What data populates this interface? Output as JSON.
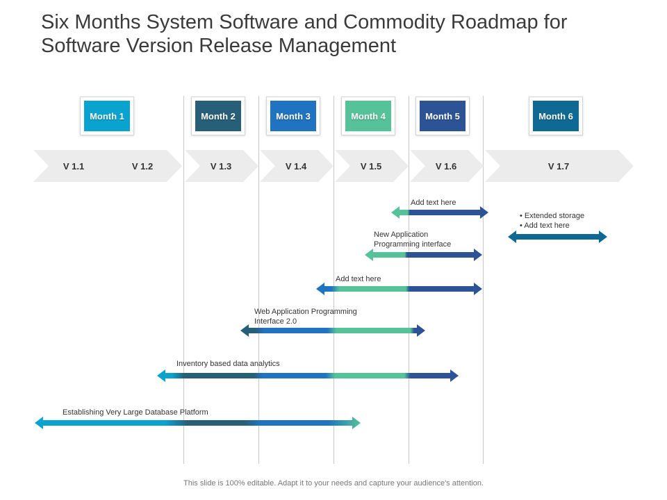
{
  "title": "Six Months System Software and Commodity Roadmap for Software Version Release Management",
  "months": [
    {
      "label": "Month 1",
      "color": "#0aa3cf"
    },
    {
      "label": "Month 2",
      "color": "#275e78"
    },
    {
      "label": "Month 3",
      "color": "#1f73c0"
    },
    {
      "label": "Month 4",
      "color": "#56c29a"
    },
    {
      "label": "Month 5",
      "color": "#2b5396"
    },
    {
      "label": "Month 6",
      "color": "#0e6a94"
    }
  ],
  "versions": [
    "V 1.1",
    "V 1.2",
    "V 1.3",
    "V 1.4",
    "V 1.5",
    "V 1.6",
    "V 1.7"
  ],
  "tasks": [
    {
      "label": "Add text here"
    },
    {
      "bullets": [
        "Extended storage",
        "Add text here"
      ]
    },
    {
      "label": "New Application\nProgramming interface"
    },
    {
      "label": "Add text here"
    },
    {
      "label": "Web Application Programming\nInterface 2.0"
    },
    {
      "label": "Inventory  based data analytics"
    },
    {
      "label": "Establishing Very Large Database Platform"
    }
  ],
  "footer": "This slide is 100% editable. Adapt it to your needs and capture your audience's attention."
}
